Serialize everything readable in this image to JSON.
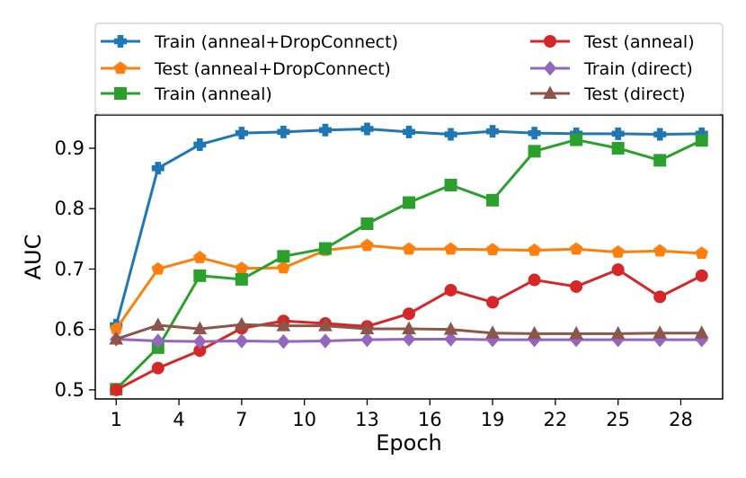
{
  "chart_data": {
    "type": "line",
    "title": "",
    "xlabel": "Epoch",
    "ylabel": "AUC",
    "x": [
      1,
      3,
      5,
      7,
      9,
      11,
      13,
      15,
      17,
      19,
      21,
      23,
      25,
      27,
      29
    ],
    "xticks": [
      1,
      4,
      7,
      10,
      13,
      16,
      19,
      22,
      25,
      28
    ],
    "yticks": [
      0.5,
      0.6,
      0.7,
      0.8,
      0.9
    ],
    "xlim": [
      0,
      30
    ],
    "ylim": [
      0.485,
      0.955
    ],
    "grid": false,
    "legend_position": "top",
    "series": [
      {
        "name": "Train (anneal+DropConnect)",
        "color": "#1f77b4",
        "marker": "plus",
        "values": [
          0.607,
          0.867,
          0.906,
          0.925,
          0.927,
          0.93,
          0.932,
          0.927,
          0.923,
          0.928,
          0.925,
          0.924,
          0.924,
          0.923,
          0.924
        ]
      },
      {
        "name": "Test  (anneal+DropConnect)",
        "color": "#ff7f0e",
        "marker": "pentagon",
        "values": [
          0.601,
          0.7,
          0.719,
          0.701,
          0.702,
          0.731,
          0.739,
          0.733,
          0.733,
          0.732,
          0.731,
          0.733,
          0.728,
          0.73,
          0.726
        ]
      },
      {
        "name": "Train (anneal)",
        "color": "#2ca02c",
        "marker": "square",
        "values": [
          0.501,
          0.57,
          0.689,
          0.683,
          0.721,
          0.734,
          0.775,
          0.81,
          0.839,
          0.814,
          0.895,
          0.914,
          0.9,
          0.88,
          0.913
        ]
      },
      {
        "name": "Test  (anneal)",
        "color": "#d62728",
        "marker": "circle",
        "values": [
          0.5,
          0.536,
          0.565,
          0.602,
          0.614,
          0.61,
          0.605,
          0.626,
          0.665,
          0.645,
          0.682,
          0.671,
          0.699,
          0.654,
          0.689
        ]
      },
      {
        "name": "Train (direct)",
        "color": "#9467bd",
        "marker": "diamond",
        "values": [
          0.584,
          0.581,
          0.58,
          0.581,
          0.58,
          0.581,
          0.583,
          0.584,
          0.584,
          0.583,
          0.583,
          0.583,
          0.583,
          0.583,
          0.583
        ]
      },
      {
        "name": "Test  (direct)",
        "color": "#8c564b",
        "marker": "triangle",
        "values": [
          0.584,
          0.607,
          0.601,
          0.608,
          0.606,
          0.606,
          0.601,
          0.601,
          0.6,
          0.594,
          0.593,
          0.593,
          0.593,
          0.594,
          0.594
        ]
      }
    ]
  }
}
